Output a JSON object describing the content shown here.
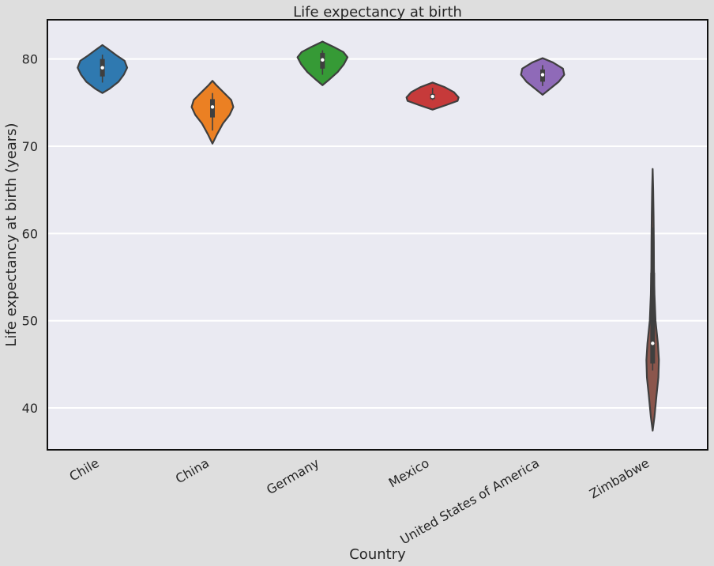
{
  "chart_data": {
    "type": "violin",
    "title": "Life expectancy at birth",
    "xlabel": "Country",
    "ylabel": "Life expectancy at birth (years)",
    "ylim": [
      35.2,
      84.5
    ],
    "yticks": [
      40,
      50,
      60,
      70,
      80
    ],
    "grid": true,
    "legend": "none",
    "categories": [
      "Chile",
      "China",
      "Germany",
      "Mexico",
      "United States of America",
      "Zimbabwe"
    ],
    "series": [
      {
        "category": "Chile",
        "color": "#2f79b0",
        "min": 77.3,
        "q1": 78.0,
        "median": 79.0,
        "q3": 80.0,
        "max": 80.5,
        "profile": [
          [
            76.1,
            0.0
          ],
          [
            76.6,
            0.28
          ],
          [
            77.4,
            0.62
          ],
          [
            78.2,
            0.82
          ],
          [
            79.0,
            0.95
          ],
          [
            79.8,
            0.85
          ],
          [
            80.4,
            0.55
          ],
          [
            81.0,
            0.28
          ],
          [
            81.6,
            0.0
          ]
        ]
      },
      {
        "category": "China",
        "color": "#eb8023",
        "min": 71.8,
        "q1": 73.3,
        "median": 74.5,
        "q3": 75.4,
        "max": 76.1,
        "profile": [
          [
            70.3,
            0.0
          ],
          [
            71.4,
            0.18
          ],
          [
            72.6,
            0.4
          ],
          [
            73.6,
            0.66
          ],
          [
            74.5,
            0.8
          ],
          [
            75.3,
            0.72
          ],
          [
            76.2,
            0.42
          ],
          [
            77.0,
            0.15
          ],
          [
            77.5,
            0.0
          ]
        ]
      },
      {
        "category": "Germany",
        "color": "#369a36",
        "min": 78.2,
        "q1": 78.9,
        "median": 79.9,
        "q3": 80.7,
        "max": 81.0,
        "profile": [
          [
            77.0,
            0.0
          ],
          [
            77.6,
            0.24
          ],
          [
            78.5,
            0.58
          ],
          [
            79.4,
            0.82
          ],
          [
            80.2,
            0.96
          ],
          [
            80.8,
            0.8
          ],
          [
            81.4,
            0.42
          ],
          [
            82.0,
            0.0
          ]
        ]
      },
      {
        "category": "Mexico",
        "color": "#c63a3a",
        "min": 75.3,
        "q1": 75.4,
        "median": 75.7,
        "q3": 76.0,
        "max": 76.7,
        "profile": [
          [
            74.2,
            0.0
          ],
          [
            74.7,
            0.5
          ],
          [
            75.2,
            0.96
          ],
          [
            75.6,
            1.0
          ],
          [
            76.2,
            0.82
          ],
          [
            76.8,
            0.45
          ],
          [
            77.3,
            0.0
          ]
        ]
      },
      {
        "category": "United States of America",
        "color": "#8f6ab8",
        "min": 76.9,
        "q1": 77.4,
        "median": 78.2,
        "q3": 78.8,
        "max": 79.3,
        "profile": [
          [
            75.9,
            0.0
          ],
          [
            76.5,
            0.25
          ],
          [
            77.4,
            0.62
          ],
          [
            78.2,
            0.83
          ],
          [
            78.9,
            0.78
          ],
          [
            79.6,
            0.4
          ],
          [
            80.1,
            0.0
          ]
        ]
      },
      {
        "category": "Zimbabwe",
        "color": "#8b564c",
        "min": 44.3,
        "q1": 45.1,
        "median": 47.4,
        "q3": 55.5,
        "max": 60.7,
        "profile": [
          [
            37.4,
            0.0
          ],
          [
            39.0,
            0.07
          ],
          [
            41.5,
            0.15
          ],
          [
            43.5,
            0.22
          ],
          [
            45.5,
            0.24
          ],
          [
            47.4,
            0.2
          ],
          [
            50.0,
            0.11
          ],
          [
            53.0,
            0.07
          ],
          [
            56.0,
            0.05
          ],
          [
            59.0,
            0.045
          ],
          [
            62.0,
            0.035
          ],
          [
            65.0,
            0.02
          ],
          [
            67.4,
            0.0
          ]
        ]
      }
    ]
  }
}
